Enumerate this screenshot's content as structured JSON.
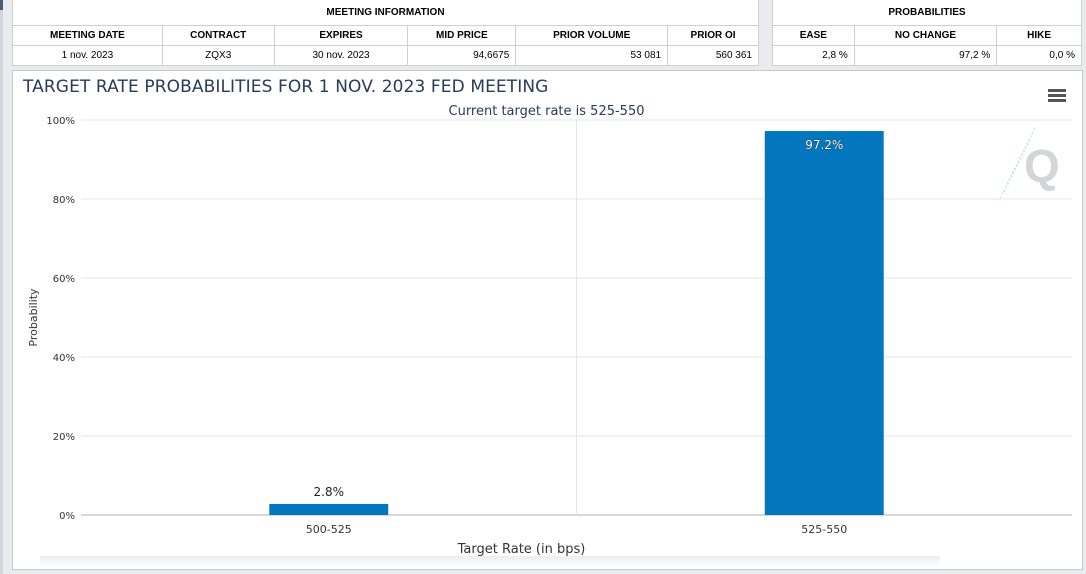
{
  "meeting_info": {
    "group_label": "MEETING INFORMATION",
    "headers": [
      "MEETING DATE",
      "CONTRACT",
      "EXPIRES",
      "MID PRICE",
      "PRIOR VOLUME",
      "PRIOR OI"
    ],
    "row": [
      "1 nov. 2023",
      "ZQX3",
      "30 nov. 2023",
      "94,6675",
      "53 081",
      "560 361"
    ]
  },
  "probabilities": {
    "group_label": "PROBABILITIES",
    "headers": [
      "EASE",
      "NO CHANGE",
      "HIKE"
    ],
    "row": [
      "2,8 %",
      "97,2 %",
      "0,0 %"
    ]
  },
  "chart_data": {
    "type": "bar",
    "title": "TARGET RATE PROBABILITIES FOR 1 NOV. 2023 FED MEETING",
    "subtitle": "Current target rate is 525-550",
    "xlabel": "Target Rate (in bps)",
    "ylabel": "Probability",
    "categories": [
      "500-525",
      "525-550"
    ],
    "values": [
      2.8,
      97.2
    ],
    "data_labels": [
      "2.8%",
      "97.2%"
    ],
    "ylim": [
      0,
      100
    ],
    "yticks": [
      "0%",
      "20%",
      "40%",
      "60%",
      "80%",
      "100%"
    ],
    "ytick_values": [
      0,
      20,
      40,
      60,
      80,
      100
    ],
    "bar_color": "#0277bd",
    "grid": true
  },
  "colors": {
    "title": "#2a3a5a",
    "axis_text": "#333333",
    "grid": "#e6e6e6"
  },
  "icons": {
    "menu": "menu-icon",
    "watermark": "quikstrike-logo"
  }
}
